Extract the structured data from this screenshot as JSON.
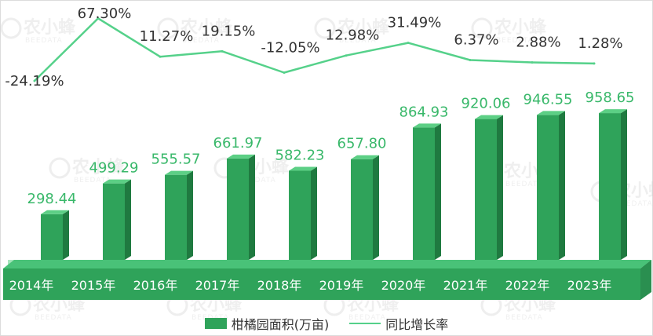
{
  "chart_data": {
    "type": "bar",
    "categories": [
      "2014年",
      "2015年",
      "2016年",
      "2017年",
      "2018年",
      "2019年",
      "2020年",
      "2021年",
      "2022年",
      "2023年"
    ],
    "series": [
      {
        "name": "柑橘园面积(万亩)",
        "type": "bar",
        "values": [
          298.44,
          499.29,
          555.57,
          661.97,
          582.23,
          657.8,
          864.93,
          920.06,
          946.55,
          958.65
        ],
        "labels": [
          "298.44",
          "499.29",
          "555.57",
          "661.97",
          "582.23",
          "657.80",
          "864.93",
          "920.06",
          "946.55",
          "958.65"
        ]
      },
      {
        "name": "同比增长率",
        "type": "line",
        "values": [
          -24.19,
          67.3,
          11.27,
          19.15,
          -12.05,
          12.98,
          31.49,
          6.37,
          2.88,
          1.28
        ],
        "labels": [
          "-24.19%",
          "67.30%",
          "11.27%",
          "19.15%",
          "-12.05%",
          "12.98%",
          "31.49%",
          "6.37%",
          "2.88%",
          "1.28%"
        ]
      }
    ],
    "legend_position": "bottom",
    "grid": false,
    "colors": {
      "bar": "#2fa35a",
      "bar_side": "#1f7a40",
      "bar_top": "#5ccf85",
      "line": "#55d18a",
      "platform": "#2fa35a"
    }
  },
  "watermark": {
    "text": "农小蜂",
    "sub": "BEEDATA"
  }
}
